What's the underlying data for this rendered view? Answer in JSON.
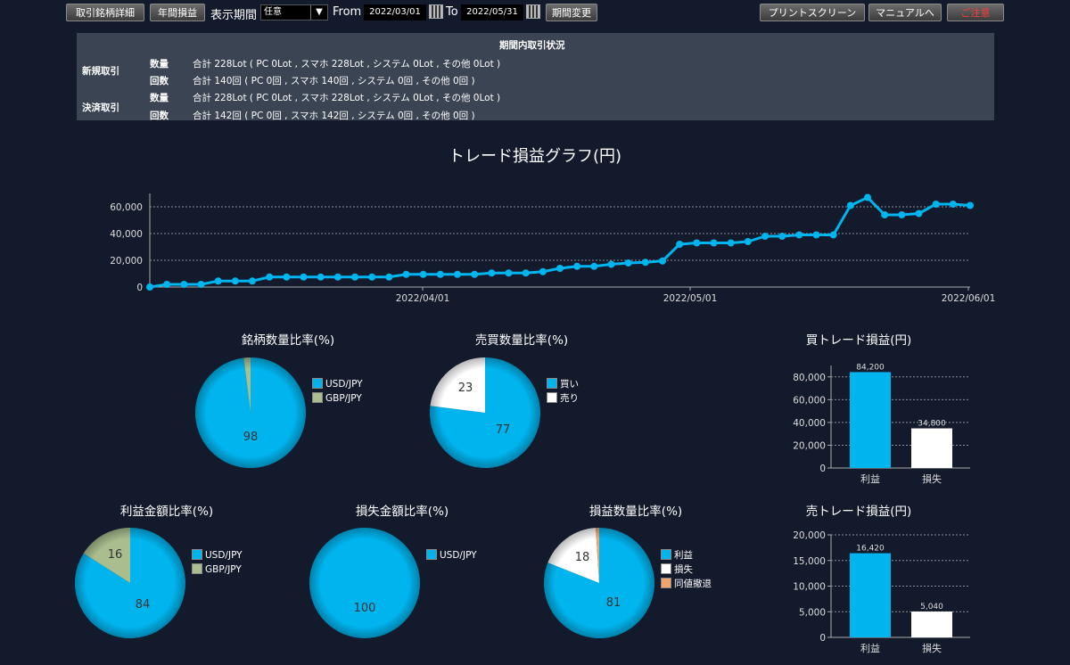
{
  "toolbar": {
    "btn_detail": "取引銘柄詳細",
    "btn_annual": "年間損益",
    "period_label": "表示期間",
    "period_value": "任意",
    "from_label": "From",
    "from_date": "2022/03/01",
    "to_label": "To",
    "to_date": "2022/05/31",
    "btn_change": "期間変更",
    "btn_print": "プリントスクリーン",
    "btn_manual": "マニュアルへ",
    "btn_close": "ご注意"
  },
  "status": {
    "title": "期間内取引状況",
    "new_label": "新規取引",
    "settle_label": "決済取引",
    "qty_label": "数量",
    "count_label": "回数",
    "new_qty": "合計 228Lot ( PC 0Lot , スマホ 228Lot , システム 0Lot , その他 0Lot )",
    "new_count": "合計 140回 ( PC 0回 , スマホ 140回 , システム 0回 , その他 0回 )",
    "settle_qty": "合計 228Lot ( PC 0Lot , スマホ 228Lot , システム 0Lot , その他 0Lot )",
    "settle_count": "合計 142回 ( PC 0回 , スマホ 142回 , システム 0回 , その他 0回 )"
  },
  "chart_data": [
    {
      "id": "main",
      "type": "line",
      "title": "トレード損益グラフ(円)",
      "yticks": [
        "0",
        "20,000",
        "40,000",
        "60,000"
      ],
      "xticks": [
        "2022/04/01",
        "2022/05/01",
        "2022/06/01"
      ],
      "ylim": [
        0,
        70000
      ],
      "grid": true,
      "color": "#00b4ee",
      "values": [
        0,
        2000,
        2000,
        2000,
        4500,
        4500,
        4500,
        7500,
        7500,
        7500,
        7500,
        7500,
        7500,
        7500,
        7500,
        9500,
        9500,
        9500,
        9500,
        9500,
        10500,
        10500,
        10500,
        11500,
        14000,
        15500,
        15500,
        17000,
        18000,
        18500,
        19500,
        32000,
        33000,
        33000,
        33000,
        34000,
        38000,
        38000,
        39000,
        39000,
        39000,
        61000,
        67000,
        54000,
        54000,
        55000,
        62000,
        62000,
        61000
      ]
    },
    {
      "id": "symbol_qty",
      "type": "pie",
      "title": "銘柄数量比率(%)",
      "series": [
        {
          "name": "USD/JPY",
          "value": 98,
          "color": "#00b4ee"
        },
        {
          "name": "GBP/JPY",
          "value": 2,
          "color": "#a9bd8f"
        }
      ],
      "labels": [
        "98"
      ]
    },
    {
      "id": "buysell_qty",
      "type": "pie",
      "title": "売買数量比率(%)",
      "series": [
        {
          "name": "買い",
          "value": 77,
          "color": "#00b4ee"
        },
        {
          "name": "売り",
          "value": 23,
          "color": "#ffffff"
        }
      ],
      "labels": [
        "77",
        "23"
      ]
    },
    {
      "id": "buy_pl",
      "type": "bar",
      "title": "買トレード損益(円)",
      "categories": [
        "利益",
        "損失"
      ],
      "values": [
        84200,
        34800
      ],
      "value_labels": [
        "84,200",
        "34,800"
      ],
      "colors": [
        "#00b4ee",
        "#ffffff"
      ],
      "yticks": [
        "0",
        "20,000",
        "40,000",
        "60,000",
        "80,000"
      ],
      "ylim": [
        0,
        90000
      ]
    },
    {
      "id": "profit_amt",
      "type": "pie",
      "title": "利益金額比率(%)",
      "series": [
        {
          "name": "USD/JPY",
          "value": 84,
          "color": "#00b4ee"
        },
        {
          "name": "GBP/JPY",
          "value": 16,
          "color": "#a9bd8f"
        }
      ],
      "labels": [
        "84",
        "16"
      ]
    },
    {
      "id": "loss_amt",
      "type": "pie",
      "title": "損失金額比率(%)",
      "series": [
        {
          "name": "USD/JPY",
          "value": 100,
          "color": "#00b4ee"
        }
      ],
      "labels": [
        "100"
      ]
    },
    {
      "id": "pl_qty",
      "type": "pie",
      "title": "損益数量比率(%)",
      "series": [
        {
          "name": "利益",
          "value": 81,
          "color": "#00b4ee"
        },
        {
          "name": "損失",
          "value": 18,
          "color": "#ffffff"
        },
        {
          "name": "同値撤退",
          "value": 1,
          "color": "#f4a46a"
        }
      ],
      "labels": [
        "81",
        "18"
      ]
    },
    {
      "id": "sell_pl",
      "type": "bar",
      "title": "売トレード損益(円)",
      "categories": [
        "利益",
        "損失"
      ],
      "values": [
        16420,
        5040
      ],
      "value_labels": [
        "16,420",
        "5,040"
      ],
      "colors": [
        "#00b4ee",
        "#ffffff"
      ],
      "yticks": [
        "0",
        "5,000",
        "10,000",
        "15,000",
        "20,000"
      ],
      "ylim": [
        0,
        20000
      ]
    }
  ]
}
